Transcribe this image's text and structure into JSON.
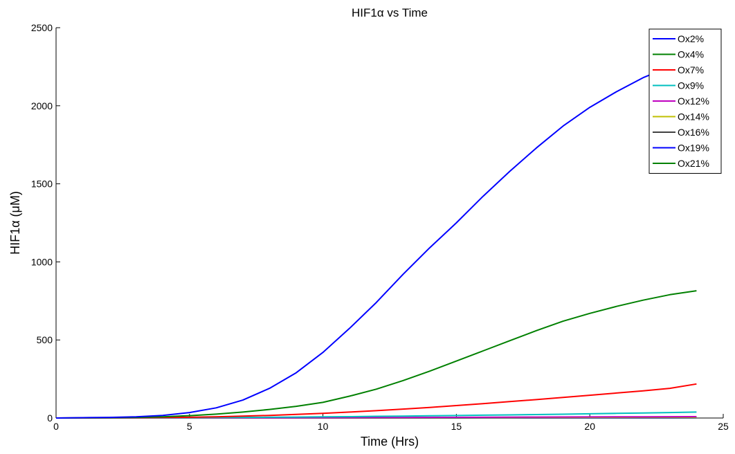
{
  "chart_data": {
    "type": "line",
    "title": "HIF1α vs Time",
    "xlabel": "Time (Hrs)",
    "ylabel": "HIF1α (μM)",
    "xlim": [
      0,
      25
    ],
    "ylim": [
      0,
      2500
    ],
    "xticks": [
      0,
      5,
      10,
      15,
      20,
      25
    ],
    "yticks": [
      0,
      500,
      1000,
      1500,
      2000,
      2500
    ],
    "grid": false,
    "legend_position": "top-right",
    "x": [
      0,
      1,
      2,
      3,
      4,
      5,
      6,
      7,
      8,
      9,
      10,
      11,
      12,
      13,
      14,
      15,
      16,
      17,
      18,
      19,
      20,
      21,
      22,
      23,
      24
    ],
    "series": [
      {
        "name": "Ox2%",
        "color": "#0000ff",
        "values": [
          0,
          2,
          4,
          8,
          17,
          35,
          65,
          115,
          190,
          290,
          420,
          575,
          740,
          920,
          1090,
          1250,
          1420,
          1580,
          1730,
          1870,
          1990,
          2090,
          2180,
          2250,
          2300
        ]
      },
      {
        "name": "Ox4%",
        "color": "#008000",
        "values": [
          0,
          1,
          2,
          4,
          8,
          15,
          25,
          38,
          55,
          75,
          100,
          140,
          185,
          240,
          300,
          365,
          430,
          495,
          560,
          620,
          670,
          715,
          755,
          790,
          815
        ]
      },
      {
        "name": "Ox7%",
        "color": "#ff0000",
        "values": [
          0,
          0.5,
          1,
          2,
          3,
          5,
          8,
          12,
          17,
          23,
          30,
          38,
          47,
          57,
          68,
          80,
          92,
          105,
          118,
          132,
          146,
          160,
          174,
          190,
          218
        ]
      },
      {
        "name": "Ox9%",
        "color": "#00bfbf",
        "values": [
          0,
          0.2,
          0.5,
          1,
          1.5,
          2,
          3,
          4,
          5,
          6,
          8,
          9,
          11,
          12.5,
          14,
          16,
          18,
          20,
          22,
          24.5,
          27,
          29.5,
          32,
          35,
          38
        ]
      },
      {
        "name": "Ox12%",
        "color": "#bf00bf",
        "values": [
          0,
          0.1,
          0.2,
          0.3,
          0.5,
          0.7,
          1,
          1.2,
          1.5,
          1.8,
          2,
          2.5,
          3,
          3.5,
          4,
          4.5,
          5,
          5.5,
          6,
          6.5,
          7,
          7.5,
          8,
          8.5,
          9
        ]
      },
      {
        "name": "Ox14%",
        "color": "#bfbf00",
        "values": [
          0,
          0.1,
          0.2,
          0.3,
          0.4,
          0.5,
          0.7,
          0.9,
          1.1,
          1.3,
          1.5,
          1.8,
          2.1,
          2.4,
          2.7,
          3,
          3.3,
          3.6,
          3.9,
          4.2,
          4.5,
          4.8,
          5.1,
          5.4,
          5.7
        ]
      },
      {
        "name": "Ox16%",
        "color": "#404040",
        "values": [
          0,
          0.1,
          0.1,
          0.2,
          0.3,
          0.4,
          0.5,
          0.6,
          0.7,
          0.8,
          1,
          1.1,
          1.3,
          1.5,
          1.7,
          1.9,
          2.1,
          2.3,
          2.5,
          2.7,
          2.9,
          3.1,
          3.3,
          3.5,
          3.7
        ]
      },
      {
        "name": "Ox19%",
        "color": "#0000ff",
        "values": [
          0,
          0.05,
          0.1,
          0.15,
          0.2,
          0.25,
          0.3,
          0.35,
          0.4,
          0.5,
          0.6,
          0.7,
          0.8,
          0.9,
          1,
          1.1,
          1.2,
          1.3,
          1.4,
          1.5,
          1.6,
          1.7,
          1.8,
          1.9,
          2
        ]
      },
      {
        "name": "Ox21%",
        "color": "#008000",
        "values": [
          0,
          0.03,
          0.06,
          0.1,
          0.13,
          0.16,
          0.2,
          0.25,
          0.3,
          0.35,
          0.4,
          0.45,
          0.5,
          0.55,
          0.6,
          0.65,
          0.7,
          0.75,
          0.8,
          0.85,
          0.9,
          0.95,
          1,
          1.05,
          1.1
        ]
      }
    ]
  }
}
